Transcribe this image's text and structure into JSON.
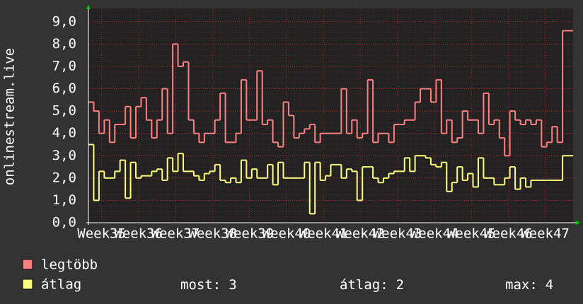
{
  "chart_data": {
    "type": "line",
    "y_label": "onlinestream.live",
    "xlim": [
      0,
      92
    ],
    "ylim": [
      0,
      9.5
    ],
    "xticks": [
      {
        "value": 2.5,
        "label": "Week35"
      },
      {
        "value": 9.5,
        "label": "Week36"
      },
      {
        "value": 16.5,
        "label": "Week37"
      },
      {
        "value": 23.6,
        "label": "Week38"
      },
      {
        "value": 30.6,
        "label": "Week39"
      },
      {
        "value": 37.6,
        "label": "Week40"
      },
      {
        "value": 44.6,
        "label": "Week41"
      },
      {
        "value": 51.6,
        "label": "Week42"
      },
      {
        "value": 58.7,
        "label": "Week43"
      },
      {
        "value": 65.7,
        "label": "Week44"
      },
      {
        "value": 72.7,
        "label": "Week45"
      },
      {
        "value": 79.7,
        "label": "Week46"
      },
      {
        "value": 86.7,
        "label": "Week47"
      }
    ],
    "yticks": [
      {
        "value": 0,
        "label": "0,0"
      },
      {
        "value": 1,
        "label": "1,0"
      },
      {
        "value": 2,
        "label": "2,0"
      },
      {
        "value": 3,
        "label": "3,0"
      },
      {
        "value": 4,
        "label": "4,0"
      },
      {
        "value": 5,
        "label": "5,0"
      },
      {
        "value": 6,
        "label": "6,0"
      },
      {
        "value": 7,
        "label": "7,0"
      },
      {
        "value": 8,
        "label": "8,0"
      },
      {
        "value": 9,
        "label": "9,0"
      }
    ],
    "grid": true,
    "step": true,
    "series": [
      {
        "name": "legtöbb",
        "color": "#ff8080",
        "values": [
          5.4,
          5.0,
          4.0,
          4.6,
          3.6,
          4.4,
          4.4,
          5.2,
          3.8,
          5.2,
          5.6,
          4.6,
          3.8,
          4.6,
          6.0,
          4.0,
          8.0,
          7.0,
          7.2,
          4.6,
          4.0,
          3.6,
          4.0,
          4.0,
          4.6,
          5.8,
          3.6,
          3.6,
          4.0,
          6.4,
          4.6,
          4.6,
          6.8,
          4.4,
          4.6,
          3.6,
          3.4,
          5.4,
          4.8,
          3.8,
          4.0,
          4.2,
          4.4,
          3.6,
          4.0,
          4.0,
          4.0,
          4.0,
          6.0,
          4.0,
          4.6,
          3.8,
          4.0,
          6.4,
          3.6,
          4.0,
          4.0,
          3.6,
          4.4,
          4.4,
          4.6,
          4.6,
          5.4,
          6.0,
          6.0,
          5.4,
          6.4,
          4.0,
          4.6,
          3.6,
          3.8,
          5.0,
          4.6,
          4.6,
          4.0,
          5.8,
          4.4,
          4.6,
          3.8,
          3.0,
          5.0,
          4.6,
          4.4,
          4.6,
          4.4,
          4.6,
          3.4,
          3.6,
          4.3,
          3.6,
          8.6,
          8.6
        ]
      },
      {
        "name": "átlag",
        "color": "#ffff80",
        "values": [
          3.5,
          1.0,
          2.3,
          2.0,
          2.0,
          2.3,
          2.8,
          1.1,
          2.7,
          2.0,
          2.1,
          2.1,
          2.3,
          2.4,
          1.9,
          2.9,
          2.3,
          3.1,
          2.3,
          2.3,
          2.1,
          1.9,
          2.2,
          2.3,
          2.6,
          1.9,
          1.8,
          2.0,
          1.8,
          2.8,
          2.0,
          2.4,
          2.0,
          2.0,
          2.6,
          1.7,
          2.7,
          2.0,
          2.0,
          2.0,
          2.0,
          2.7,
          0.4,
          2.7,
          1.9,
          2.1,
          2.6,
          2.6,
          2.0,
          2.4,
          2.3,
          1.0,
          2.5,
          2.5,
          2.0,
          1.8,
          2.0,
          2.2,
          2.3,
          2.3,
          2.9,
          2.3,
          3.0,
          3.0,
          2.9,
          2.6,
          2.5,
          2.7,
          1.4,
          1.8,
          2.5,
          1.9,
          2.2,
          1.6,
          2.9,
          2.0,
          2.0,
          1.7,
          1.7,
          2.0,
          2.5,
          1.5,
          2.0,
          1.6,
          1.9,
          1.9,
          1.9,
          1.9,
          1.9,
          1.9,
          3.0,
          3.0
        ]
      }
    ],
    "stats": [
      {
        "label": "most:",
        "value": 3
      },
      {
        "label": "átlag:",
        "value": 2
      },
      {
        "label": "max:",
        "value": 4
      }
    ]
  }
}
